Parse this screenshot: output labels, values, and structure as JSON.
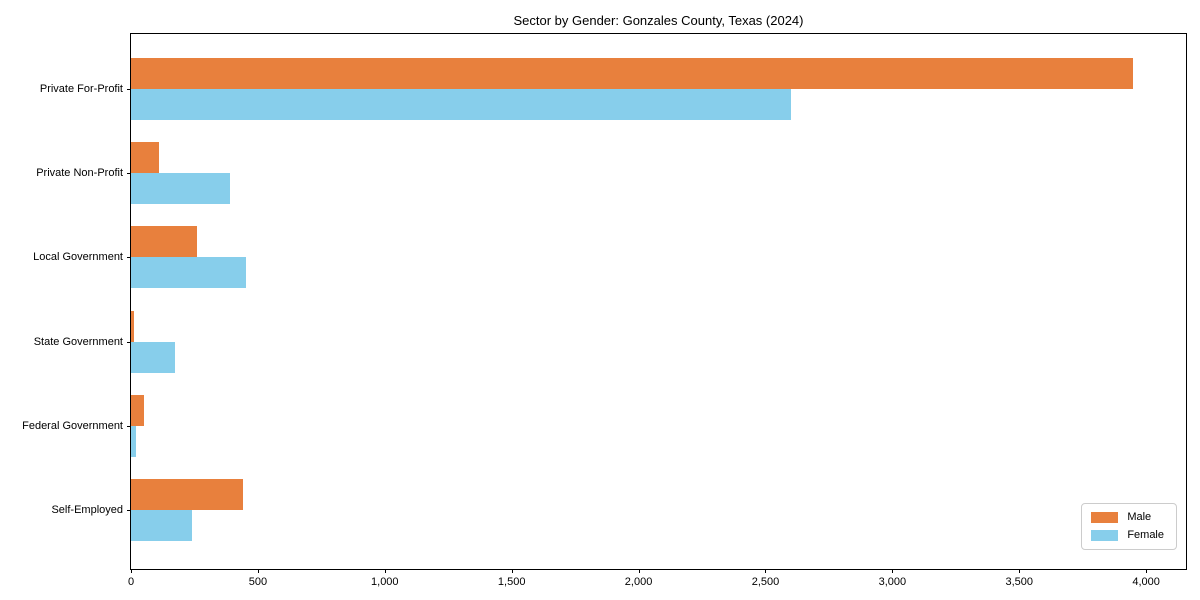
{
  "chart_data": {
    "type": "bar",
    "orientation": "horizontal",
    "title": "Sector by Gender: Gonzales County, Texas (2024)",
    "categories": [
      "Private For-Profit",
      "Private Non-Profit",
      "Local Government",
      "State Government",
      "Federal Government",
      "Self-Employed"
    ],
    "series": [
      {
        "name": "Male",
        "color": "#e8803d",
        "values": [
          3950,
          110,
          260,
          10,
          50,
          440
        ]
      },
      {
        "name": "Female",
        "color": "#87ceeb",
        "values": [
          2600,
          390,
          455,
          175,
          20,
          240
        ]
      }
    ],
    "xlabel": "",
    "ylabel": "",
    "xlim": [
      0,
      4157
    ],
    "x_ticks": [
      0,
      500,
      1000,
      1500,
      2000,
      2500,
      3000,
      3500,
      4000
    ],
    "x_tick_labels": [
      "0",
      "500",
      "1,000",
      "1,500",
      "2,000",
      "2,500",
      "3,000",
      "3,500",
      "4,000"
    ],
    "grid": false,
    "legend_position": "lower right",
    "axis_color": "#000000"
  }
}
